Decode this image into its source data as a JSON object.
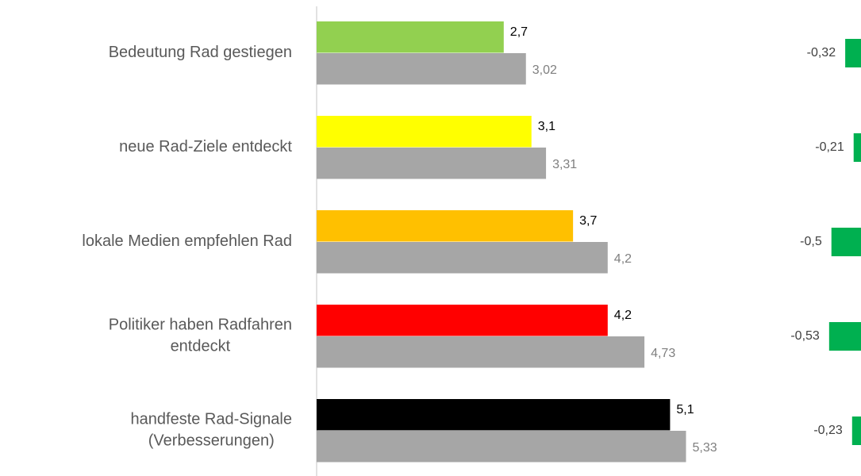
{
  "chart_data": [
    {
      "type": "hbar",
      "categories": [
        [
          "Bedeutung Rad gestiegen"
        ],
        [
          "neue Rad-Ziele entdeckt"
        ],
        [
          "lokale Medien empfehlen Rad"
        ],
        [
          "Politiker haben Radfahren",
          "entdeckt"
        ],
        [
          "handfeste Rad-Signale",
          "(Verbesserungen)"
        ]
      ],
      "series": [
        {
          "colors": [
            "#92d050",
            "#ffff00",
            "#ffc000",
            "#ff0000",
            "#000000"
          ],
          "values": [
            2.7,
            3.1,
            3.7,
            4.2,
            5.1
          ],
          "value_labels": [
            "2,7",
            "3,1",
            "3,7",
            "4,2",
            "5,1"
          ],
          "label_color": "#000000"
        },
        {
          "color": "#a6a6a6",
          "values": [
            3.02,
            3.31,
            4.2,
            4.73,
            5.33
          ],
          "value_labels": [
            "3,02",
            "3,31",
            "4,2",
            "4,73",
            "5,33"
          ],
          "label_color": "#7f7f7f"
        }
      ],
      "xlim": [
        0,
        6
      ]
    },
    {
      "type": "hbar",
      "values": [
        -0.32,
        -0.21,
        -0.5,
        -0.53,
        -0.23
      ],
      "value_labels": [
        "-0,32",
        "-0,21",
        "-0,5",
        "-0,53",
        "-0,23"
      ],
      "color": "#00b050",
      "xlim": [
        -0.58,
        0
      ]
    }
  ]
}
